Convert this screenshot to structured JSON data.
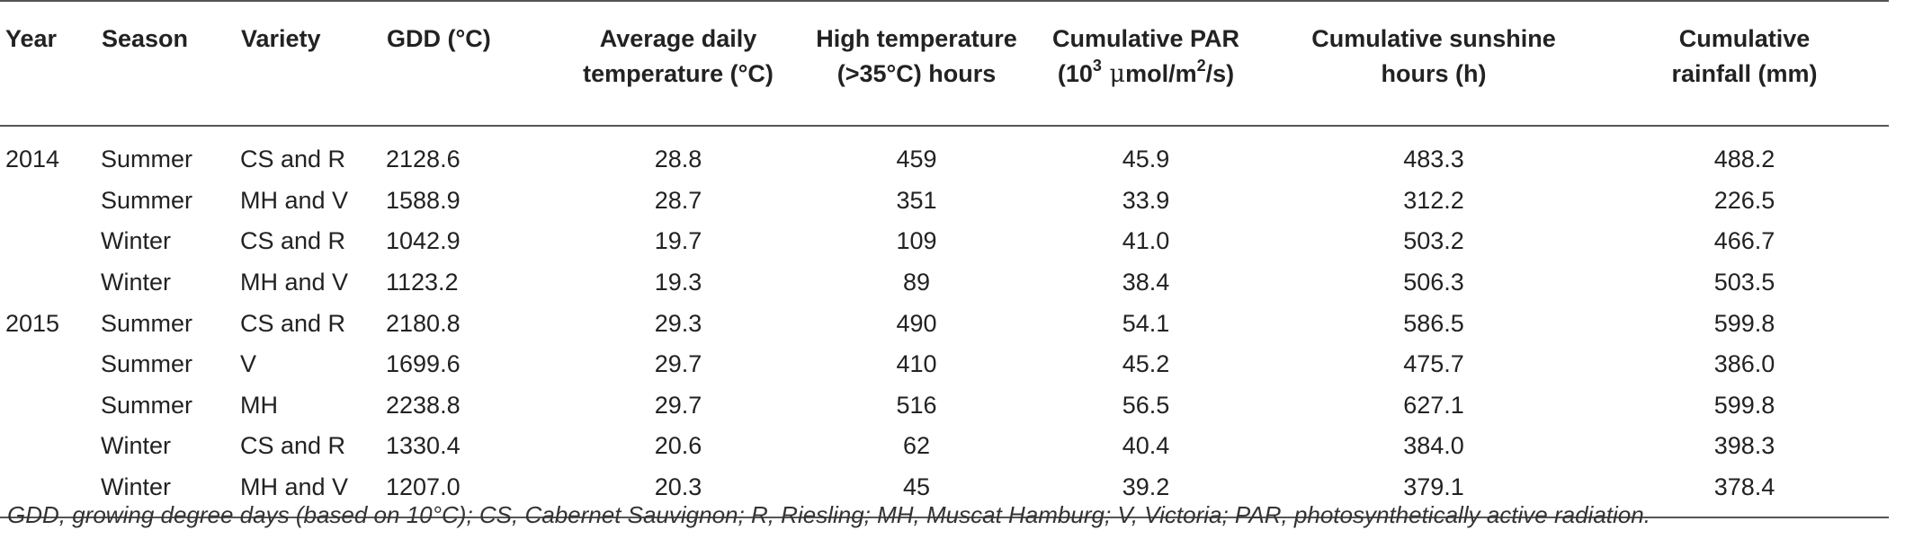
{
  "headers": {
    "year": "Year",
    "season": "Season",
    "variety": "Variety",
    "gdd": "GDD (°C)",
    "avg_temp_line1": "Average daily",
    "avg_temp_line2": "temperature (°C)",
    "high_temp_line1": "High temperature",
    "high_temp_line2": "(>35°C) hours",
    "par_line1": "Cumulative PAR",
    "par_line2_prefix": "(10",
    "par_line2_sup": "3",
    "par_line2_mu": " μ",
    "par_line2_mid": "mol/m",
    "par_line2_sup2": "2",
    "par_line2_suffix": "/s)",
    "sunshine_line1": "Cumulative sunshine",
    "sunshine_line2": "hours (h)",
    "rainfall_line1": "Cumulative",
    "rainfall_line2": "rainfall (mm)"
  },
  "rows": [
    {
      "year": "2014",
      "season": "Summer",
      "variety": "CS and R",
      "gdd": "2128.6",
      "avg_temp": "28.8",
      "high_temp_hours": "459",
      "par": "45.9",
      "sunshine": "483.3",
      "rainfall": "488.2"
    },
    {
      "year": "",
      "season": "Summer",
      "variety": "MH and V",
      "gdd": "1588.9",
      "avg_temp": "28.7",
      "high_temp_hours": "351",
      "par": "33.9",
      "sunshine": "312.2",
      "rainfall": "226.5"
    },
    {
      "year": "",
      "season": "Winter",
      "variety": "CS and R",
      "gdd": "1042.9",
      "avg_temp": "19.7",
      "high_temp_hours": "109",
      "par": "41.0",
      "sunshine": "503.2",
      "rainfall": "466.7"
    },
    {
      "year": "",
      "season": "Winter",
      "variety": "MH and V",
      "gdd": "1123.2",
      "avg_temp": "19.3",
      "high_temp_hours": "89",
      "par": "38.4",
      "sunshine": "506.3",
      "rainfall": "503.5"
    },
    {
      "year": "2015",
      "season": "Summer",
      "variety": "CS and R",
      "gdd": "2180.8",
      "avg_temp": "29.3",
      "high_temp_hours": "490",
      "par": "54.1",
      "sunshine": "586.5",
      "rainfall": "599.8"
    },
    {
      "year": "",
      "season": "Summer",
      "variety": "V",
      "gdd": "1699.6",
      "avg_temp": "29.7",
      "high_temp_hours": "410",
      "par": "45.2",
      "sunshine": "475.7",
      "rainfall": "386.0"
    },
    {
      "year": "",
      "season": "Summer",
      "variety": "MH",
      "gdd": "2238.8",
      "avg_temp": "29.7",
      "high_temp_hours": "516",
      "par": "56.5",
      "sunshine": "627.1",
      "rainfall": "599.8"
    },
    {
      "year": "",
      "season": "Winter",
      "variety": "CS and R",
      "gdd": "1330.4",
      "avg_temp": "20.6",
      "high_temp_hours": "62",
      "par": "40.4",
      "sunshine": "384.0",
      "rainfall": "398.3"
    },
    {
      "year": "",
      "season": "Winter",
      "variety": "MH and V",
      "gdd": "1207.0",
      "avg_temp": "20.3",
      "high_temp_hours": "45",
      "par": "39.2",
      "sunshine": "379.1",
      "rainfall": "378.4"
    }
  ],
  "footnote": "GDD, growing degree days (based on 10°C); CS, Cabernet Sauvignon; R, Riesling; MH, Muscat Hamburg; V, Victoria; PAR, photosynthetically active radiation."
}
